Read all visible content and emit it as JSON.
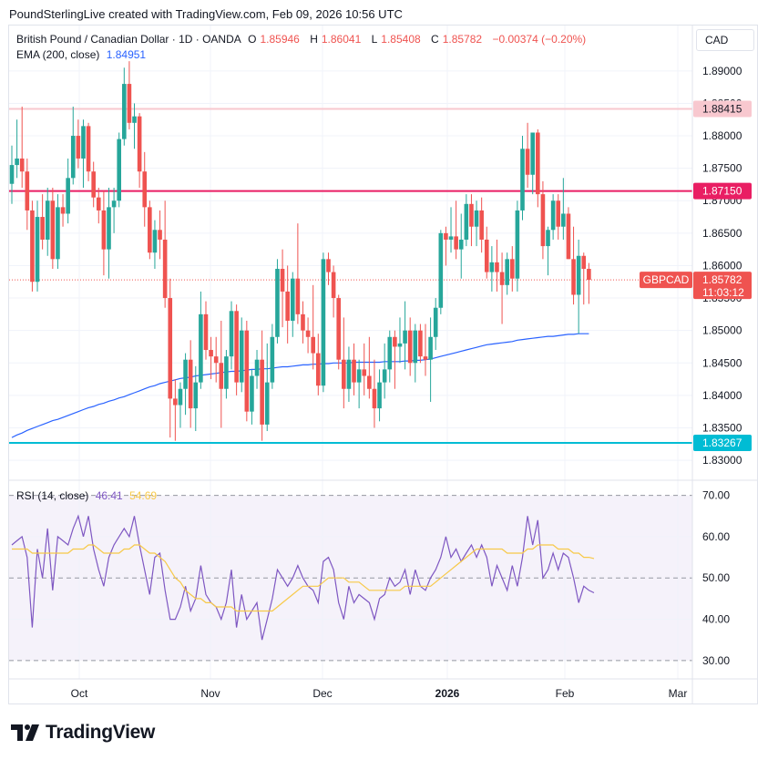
{
  "header": {
    "attribution": "PoundSterlingLive created with TradingView.com, Feb 09, 2026 10:56 UTC"
  },
  "legend": {
    "symbol": "British Pound / Canadian Dollar · 1D · OANDA",
    "open_label": "O",
    "open": "1.85946",
    "high_label": "H",
    "high": "1.86041",
    "low_label": "L",
    "low": "1.85408",
    "close_label": "C",
    "close": "1.85782",
    "change": "−0.00374 (−0.20%)",
    "ema_label": "EMA (200, close)",
    "ema_value": "1.84951"
  },
  "rsi_legend": {
    "label": "RSI (14, close)",
    "value": "46.41",
    "ma_value": "54.69"
  },
  "currency_button": "CAD",
  "branding": "TradingView",
  "colors": {
    "up": "#26a69a",
    "down": "#ef5350",
    "ema": "#2962ff",
    "rsi": "#7e57c2",
    "rsi_ma": "#f7c948",
    "resistance": "#e91e63",
    "support": "#00bcd4",
    "upper": "#f8c8cf"
  },
  "chart_data": [
    {
      "type": "candlestick",
      "symbol": "GBPCAD",
      "y_ticks": [
        "1.83000",
        "1.83500",
        "1.84000",
        "1.84500",
        "1.85000",
        "1.85500",
        "1.86000",
        "1.86500",
        "1.87000",
        "1.87500",
        "1.88000",
        "1.88500",
        "1.89000"
      ],
      "x_ticks": [
        "Oct",
        "Nov",
        "Dec",
        "2026",
        "Feb",
        "Mar"
      ],
      "ylim": [
        1.8272,
        1.897
      ],
      "horizontal_levels": [
        {
          "value": 1.88415,
          "label": "1.88415",
          "kind": "upper"
        },
        {
          "value": 1.8715,
          "label": "1.87150",
          "kind": "resistance"
        },
        {
          "value": 1.83267,
          "label": "1.83267",
          "kind": "support"
        }
      ],
      "price_tag": {
        "name": "GBPCAD",
        "value": "1.85782",
        "countdown": "11:03:12"
      },
      "candles": [
        [
          1.8726,
          1.8785,
          1.8695,
          1.8755
        ],
        [
          1.8755,
          1.8825,
          1.8735,
          1.8765
        ],
        [
          1.8765,
          1.8845,
          1.872,
          1.8745
        ],
        [
          1.8745,
          1.8765,
          1.8655,
          1.8685
        ],
        [
          1.8685,
          1.87,
          1.856,
          1.8575
        ],
        [
          1.8575,
          1.87,
          1.856,
          1.8675
        ],
        [
          1.8675,
          1.871,
          1.8625,
          1.864
        ],
        [
          1.864,
          1.872,
          1.8615,
          1.87
        ],
        [
          1.87,
          1.872,
          1.8595,
          1.861
        ],
        [
          1.861,
          1.871,
          1.8595,
          1.869
        ],
        [
          1.869,
          1.871,
          1.866,
          1.868
        ],
        [
          1.868,
          1.8765,
          1.8665,
          1.8735
        ],
        [
          1.8735,
          1.8845,
          1.8725,
          1.88
        ],
        [
          1.88,
          1.8825,
          1.875,
          1.8765
        ],
        [
          1.8765,
          1.8825,
          1.872,
          1.8815
        ],
        [
          1.8815,
          1.882,
          1.873,
          1.8745
        ],
        [
          1.8745,
          1.876,
          1.869,
          1.8705
        ],
        [
          1.8705,
          1.872,
          1.8665,
          1.8685
        ],
        [
          1.8685,
          1.8715,
          1.8585,
          1.8625
        ],
        [
          1.8625,
          1.872,
          1.858,
          1.869
        ],
        [
          1.869,
          1.872,
          1.865,
          1.87
        ],
        [
          1.87,
          1.8805,
          1.869,
          1.8795
        ],
        [
          1.8795,
          1.8905,
          1.8785,
          1.888
        ],
        [
          1.888,
          1.8915,
          1.881,
          1.882
        ],
        [
          1.882,
          1.885,
          1.878,
          1.883
        ],
        [
          1.883,
          1.8835,
          1.872,
          1.8745
        ],
        [
          1.8745,
          1.8775,
          1.866,
          1.869
        ],
        [
          1.869,
          1.87,
          1.861,
          1.862
        ],
        [
          1.862,
          1.867,
          1.8595,
          1.8655
        ],
        [
          1.8655,
          1.8685,
          1.861,
          1.864
        ],
        [
          1.864,
          1.87,
          1.8535,
          1.855
        ],
        [
          1.855,
          1.858,
          1.8335,
          1.8395
        ],
        [
          1.8395,
          1.8425,
          1.833,
          1.8385
        ],
        [
          1.8385,
          1.842,
          1.835,
          1.841
        ],
        [
          1.841,
          1.8465,
          1.837,
          1.8455
        ],
        [
          1.8455,
          1.8485,
          1.835,
          1.838
        ],
        [
          1.838,
          1.8445,
          1.8345,
          1.842
        ],
        [
          1.842,
          1.856,
          1.841,
          1.8525
        ],
        [
          1.8525,
          1.8545,
          1.8455,
          1.847
        ],
        [
          1.847,
          1.849,
          1.8425,
          1.846
        ],
        [
          1.846,
          1.849,
          1.842,
          1.845
        ],
        [
          1.845,
          1.8515,
          1.835,
          1.841
        ],
        [
          1.841,
          1.847,
          1.8395,
          1.846
        ],
        [
          1.846,
          1.8545,
          1.844,
          1.853
        ],
        [
          1.853,
          1.854,
          1.84,
          1.842
        ],
        [
          1.842,
          1.852,
          1.8405,
          1.85
        ],
        [
          1.85,
          1.8515,
          1.836,
          1.8375
        ],
        [
          1.8375,
          1.844,
          1.8355,
          1.843
        ],
        [
          1.843,
          1.847,
          1.841,
          1.8455
        ],
        [
          1.8455,
          1.85,
          1.833,
          1.8355
        ],
        [
          1.8355,
          1.848,
          1.8345,
          1.842
        ],
        [
          1.842,
          1.851,
          1.841,
          1.849
        ],
        [
          1.849,
          1.861,
          1.848,
          1.8595
        ],
        [
          1.8595,
          1.8625,
          1.8505,
          1.856
        ],
        [
          1.856,
          1.86,
          1.848,
          1.8515
        ],
        [
          1.8515,
          1.859,
          1.849,
          1.858
        ],
        [
          1.858,
          1.8665,
          1.851,
          1.8525
        ],
        [
          1.8525,
          1.8545,
          1.848,
          1.85
        ],
        [
          1.85,
          1.852,
          1.8465,
          1.849
        ],
        [
          1.849,
          1.857,
          1.844,
          1.8465
        ],
        [
          1.8465,
          1.8495,
          1.84,
          1.8415
        ],
        [
          1.8415,
          1.862,
          1.8405,
          1.861
        ],
        [
          1.861,
          1.862,
          1.857,
          1.859
        ],
        [
          1.859,
          1.86,
          1.852,
          1.855
        ],
        [
          1.855,
          1.8555,
          1.844,
          1.8455
        ],
        [
          1.8455,
          1.852,
          1.838,
          1.841
        ],
        [
          1.841,
          1.8475,
          1.839,
          1.8455
        ],
        [
          1.8455,
          1.848,
          1.84,
          1.842
        ],
        [
          1.842,
          1.8455,
          1.838,
          1.844
        ],
        [
          1.844,
          1.848,
          1.84,
          1.843
        ],
        [
          1.843,
          1.849,
          1.8395,
          1.841
        ],
        [
          1.841,
          1.8455,
          1.835,
          1.838
        ],
        [
          1.838,
          1.844,
          1.836,
          1.842
        ],
        [
          1.842,
          1.848,
          1.8395,
          1.844
        ],
        [
          1.844,
          1.85,
          1.842,
          1.849
        ],
        [
          1.849,
          1.85,
          1.841,
          1.8475
        ],
        [
          1.8475,
          1.852,
          1.845,
          1.848
        ],
        [
          1.848,
          1.8545,
          1.844,
          1.85
        ],
        [
          1.85,
          1.852,
          1.843,
          1.845
        ],
        [
          1.845,
          1.851,
          1.842,
          1.85
        ],
        [
          1.85,
          1.851,
          1.845,
          1.846
        ],
        [
          1.846,
          1.851,
          1.843,
          1.8455
        ],
        [
          1.8455,
          1.852,
          1.839,
          1.849
        ],
        [
          1.849,
          1.855,
          1.847,
          1.8535
        ],
        [
          1.8535,
          1.8655,
          1.8525,
          1.865
        ],
        [
          1.865,
          1.866,
          1.86,
          1.864
        ],
        [
          1.864,
          1.869,
          1.862,
          1.8645
        ],
        [
          1.8645,
          1.87,
          1.861,
          1.8625
        ],
        [
          1.8625,
          1.868,
          1.858,
          1.864
        ],
        [
          1.864,
          1.871,
          1.863,
          1.8695
        ],
        [
          1.8695,
          1.871,
          1.863,
          1.866
        ],
        [
          1.866,
          1.87,
          1.863,
          1.8685
        ],
        [
          1.8685,
          1.8705,
          1.862,
          1.864
        ],
        [
          1.864,
          1.866,
          1.858,
          1.859
        ],
        [
          1.859,
          1.863,
          1.856,
          1.8605
        ],
        [
          1.8605,
          1.864,
          1.856,
          1.859
        ],
        [
          1.859,
          1.862,
          1.851,
          1.857
        ],
        [
          1.857,
          1.862,
          1.8555,
          1.861
        ],
        [
          1.861,
          1.863,
          1.856,
          1.858
        ],
        [
          1.858,
          1.87,
          1.856,
          1.8685
        ],
        [
          1.8685,
          1.88,
          1.867,
          1.878
        ],
        [
          1.878,
          1.882,
          1.872,
          1.874
        ],
        [
          1.874,
          1.8805,
          1.871,
          1.8805
        ],
        [
          1.8805,
          1.881,
          1.869,
          1.871
        ],
        [
          1.871,
          1.873,
          1.861,
          1.863
        ],
        [
          1.863,
          1.866,
          1.8585,
          1.8655
        ],
        [
          1.8655,
          1.871,
          1.864,
          1.87
        ],
        [
          1.87,
          1.871,
          1.864,
          1.866
        ],
        [
          1.866,
          1.8735,
          1.864,
          1.868
        ],
        [
          1.868,
          1.869,
          1.861,
          1.861
        ],
        [
          1.861,
          1.866,
          1.854,
          1.8555
        ],
        [
          1.8555,
          1.864,
          1.8495,
          1.8615
        ],
        [
          1.8615,
          1.862,
          1.854,
          1.8595
        ],
        [
          1.8595,
          1.8604,
          1.8541,
          1.8578
        ]
      ],
      "ema200": [
        1.8335,
        1.8339,
        1.8342,
        1.8346,
        1.8349,
        1.8352,
        1.8355,
        1.8358,
        1.8361,
        1.8363,
        1.8366,
        1.8369,
        1.8372,
        1.8375,
        1.8378,
        1.8381,
        1.8383,
        1.8386,
        1.8388,
        1.8391,
        1.8393,
        1.8396,
        1.8398,
        1.8401,
        1.8404,
        1.8407,
        1.841,
        1.8413,
        1.8415,
        1.8418,
        1.842,
        1.8422,
        1.8424,
        1.8426,
        1.8427,
        1.8428,
        1.843,
        1.8431,
        1.8432,
        1.8433,
        1.8434,
        1.8435,
        1.8436,
        1.8437,
        1.8437,
        1.8438,
        1.8439,
        1.844,
        1.844,
        1.8441,
        1.8441,
        1.8442,
        1.8443,
        1.8444,
        1.8444,
        1.8445,
        1.8446,
        1.8447,
        1.8447,
        1.8448,
        1.8448,
        1.8449,
        1.8449,
        1.845,
        1.845,
        1.845,
        1.845,
        1.8451,
        1.8451,
        1.8451,
        1.8451,
        1.8451,
        1.8451,
        1.8452,
        1.8452,
        1.8452,
        1.8452,
        1.8453,
        1.8453,
        1.8454,
        1.8454,
        1.8455,
        1.8456,
        1.8458,
        1.846,
        1.8462,
        1.8464,
        1.8466,
        1.8468,
        1.847,
        1.8472,
        1.8474,
        1.8476,
        1.8478,
        1.8479,
        1.848,
        1.8481,
        1.8482,
        1.8483,
        1.8485,
        1.8486,
        1.8487,
        1.8488,
        1.8489,
        1.849,
        1.8491,
        1.8491,
        1.8492,
        1.8493,
        1.8494,
        1.8494,
        1.8495,
        1.8495,
        1.8495
      ],
      "up_color": "#26a69a",
      "down_color": "#ef5350"
    },
    {
      "type": "line",
      "title": "RSI (14, close)",
      "y_ticks": [
        "30.00",
        "40.00",
        "50.00",
        "60.00",
        "70.00"
      ],
      "ylim": [
        26,
        73
      ],
      "bands": [
        30,
        50,
        70
      ],
      "series": [
        {
          "name": "RSI",
          "values": [
            58,
            59,
            60,
            55,
            38,
            57,
            50,
            62,
            47,
            60,
            59,
            58,
            62,
            65,
            60,
            65,
            57,
            52,
            48,
            55,
            58,
            60,
            62,
            60,
            65,
            58,
            52,
            46,
            55,
            56,
            47,
            40,
            40,
            43,
            48,
            42,
            45,
            53,
            46,
            44,
            43,
            40,
            44,
            52,
            38,
            46,
            40,
            42,
            44,
            35,
            40,
            45,
            52,
            50,
            48,
            50,
            53,
            50,
            48,
            47,
            44,
            54,
            55,
            52,
            44,
            40,
            48,
            44,
            46,
            45,
            44,
            40,
            45,
            46,
            50,
            48,
            49,
            52,
            46,
            52,
            48,
            47,
            50,
            52,
            55,
            60,
            55,
            57,
            54,
            56,
            58,
            55,
            58,
            55,
            48,
            53,
            50,
            47,
            53,
            48,
            55,
            65,
            58,
            64,
            50,
            52,
            56,
            52,
            56,
            55,
            50,
            44,
            48,
            47,
            46.4
          ]
        },
        {
          "name": "MA",
          "values": [
            57,
            57,
            57,
            57,
            56,
            56,
            56,
            56,
            56,
            56,
            56,
            56,
            57,
            57,
            57,
            58,
            58,
            57,
            56,
            56,
            56,
            56,
            57,
            57,
            58,
            58,
            57,
            56,
            56,
            55,
            54,
            52,
            50,
            49,
            47,
            46,
            45,
            45,
            44,
            44,
            43,
            43,
            43,
            43,
            42,
            42,
            42,
            42,
            42,
            42,
            42,
            42,
            43,
            44,
            45,
            46,
            47,
            48,
            48,
            48,
            48,
            49,
            50,
            50,
            50,
            50,
            49,
            49,
            49,
            48,
            47,
            47,
            47,
            47,
            47,
            47,
            47,
            48,
            48,
            48,
            48,
            48,
            48,
            49,
            50,
            51,
            52,
            53,
            54,
            55,
            56,
            57,
            57,
            57,
            57,
            57,
            57,
            56,
            56,
            56,
            56,
            57,
            57,
            58,
            58,
            58,
            58,
            57,
            57,
            57,
            56,
            56,
            55,
            55,
            54.7
          ]
        }
      ]
    }
  ]
}
